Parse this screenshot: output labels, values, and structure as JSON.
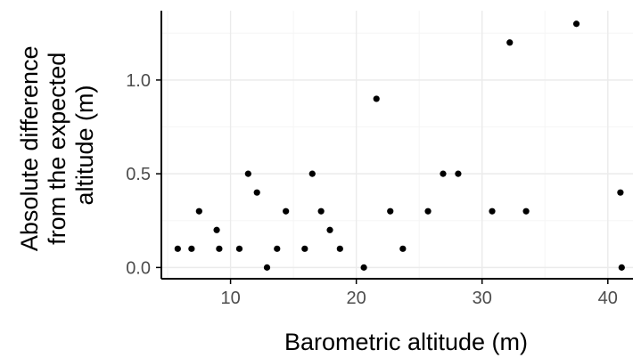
{
  "chart_data": {
    "type": "scatter",
    "xlabel": "Barometric altitude (m)",
    "ylabel": [
      "Absolute difference",
      "from the expected",
      "altitude (m)"
    ],
    "xlim": [
      4.5,
      42
    ],
    "ylim": [
      -0.06,
      1.37
    ],
    "x_ticks": [
      10,
      20,
      30,
      40
    ],
    "y_ticks": [
      0.0,
      0.5,
      1.0
    ],
    "x_tick_labels": [
      "10",
      "20",
      "30",
      "40"
    ],
    "y_tick_labels": [
      "0.0",
      "0.5",
      "1.0"
    ],
    "grid": true,
    "colors": {
      "point": "#000000",
      "grid_major": "#ebebeb",
      "grid_minor": "#f5f5f5",
      "axis": "#000000",
      "tick_text": "#4d4d4d"
    },
    "points": [
      {
        "x": 5.8,
        "y": 0.1
      },
      {
        "x": 6.9,
        "y": 0.1
      },
      {
        "x": 7.5,
        "y": 0.3
      },
      {
        "x": 8.9,
        "y": 0.2
      },
      {
        "x": 9.1,
        "y": 0.1
      },
      {
        "x": 10.7,
        "y": 0.1
      },
      {
        "x": 11.4,
        "y": 0.5
      },
      {
        "x": 12.1,
        "y": 0.4
      },
      {
        "x": 12.9,
        "y": 0.0
      },
      {
        "x": 13.7,
        "y": 0.1
      },
      {
        "x": 14.4,
        "y": 0.3
      },
      {
        "x": 15.9,
        "y": 0.1
      },
      {
        "x": 16.5,
        "y": 0.5
      },
      {
        "x": 17.2,
        "y": 0.3
      },
      {
        "x": 17.9,
        "y": 0.2
      },
      {
        "x": 18.7,
        "y": 0.1
      },
      {
        "x": 20.6,
        "y": 0.0
      },
      {
        "x": 21.6,
        "y": 0.9
      },
      {
        "x": 22.7,
        "y": 0.3
      },
      {
        "x": 23.7,
        "y": 0.1
      },
      {
        "x": 25.7,
        "y": 0.3
      },
      {
        "x": 26.9,
        "y": 0.5
      },
      {
        "x": 28.1,
        "y": 0.5
      },
      {
        "x": 30.8,
        "y": 0.3
      },
      {
        "x": 32.2,
        "y": 1.2
      },
      {
        "x": 33.5,
        "y": 0.3
      },
      {
        "x": 37.5,
        "y": 1.3
      },
      {
        "x": 41.0,
        "y": 0.4
      },
      {
        "x": 41.1,
        "y": 0.0
      }
    ]
  }
}
